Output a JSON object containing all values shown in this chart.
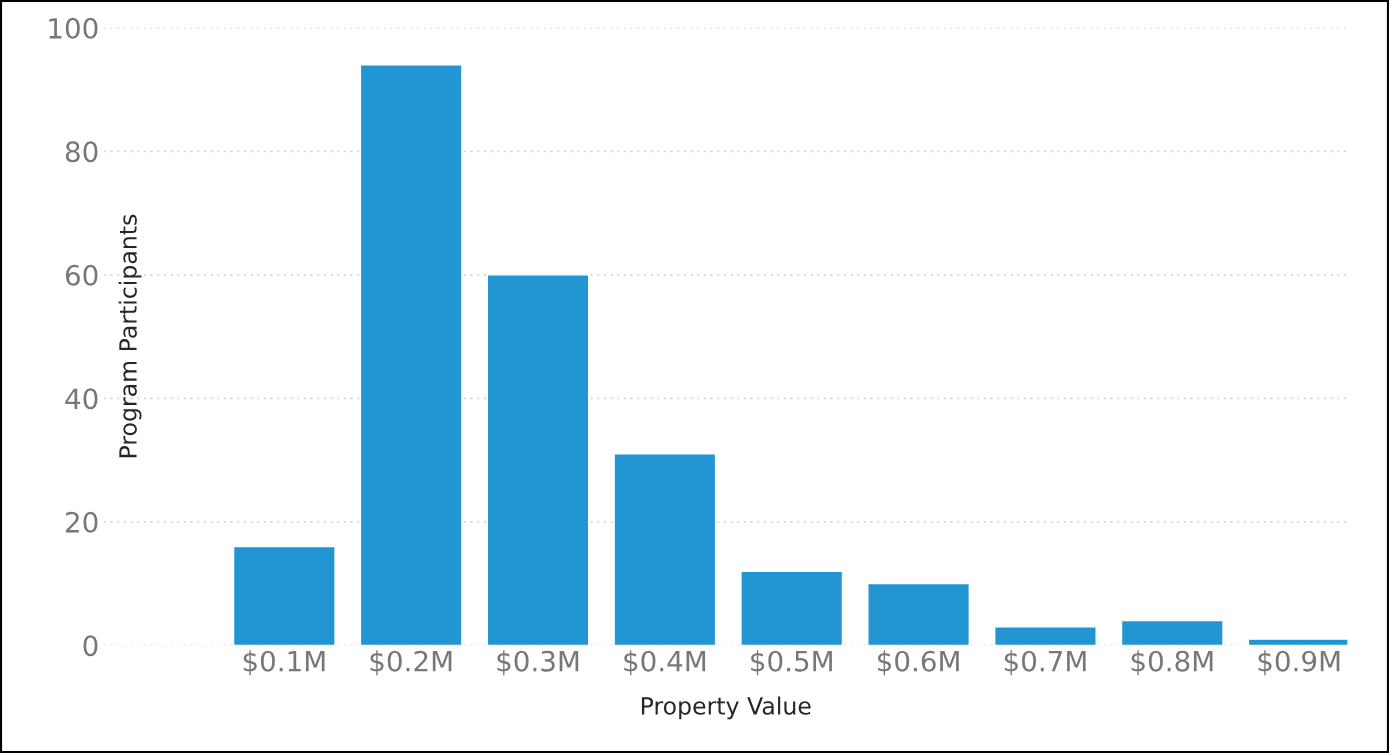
{
  "chart_data": {
    "type": "bar",
    "xlabel": "Property Value",
    "ylabel": "Program Participants",
    "categories": [
      "$0.1M",
      "$0.2M",
      "$0.3M",
      "$0.4M",
      "$0.5M",
      "$0.6M",
      "$0.7M",
      "$0.8M",
      "$0.9M"
    ],
    "values": [
      16,
      94,
      60,
      31,
      12,
      10,
      3,
      4,
      1
    ],
    "color": "#2196d3",
    "ylim": [
      0,
      100
    ],
    "yticks": [
      0,
      20,
      40,
      60,
      80,
      100
    ],
    "grid": "y"
  }
}
